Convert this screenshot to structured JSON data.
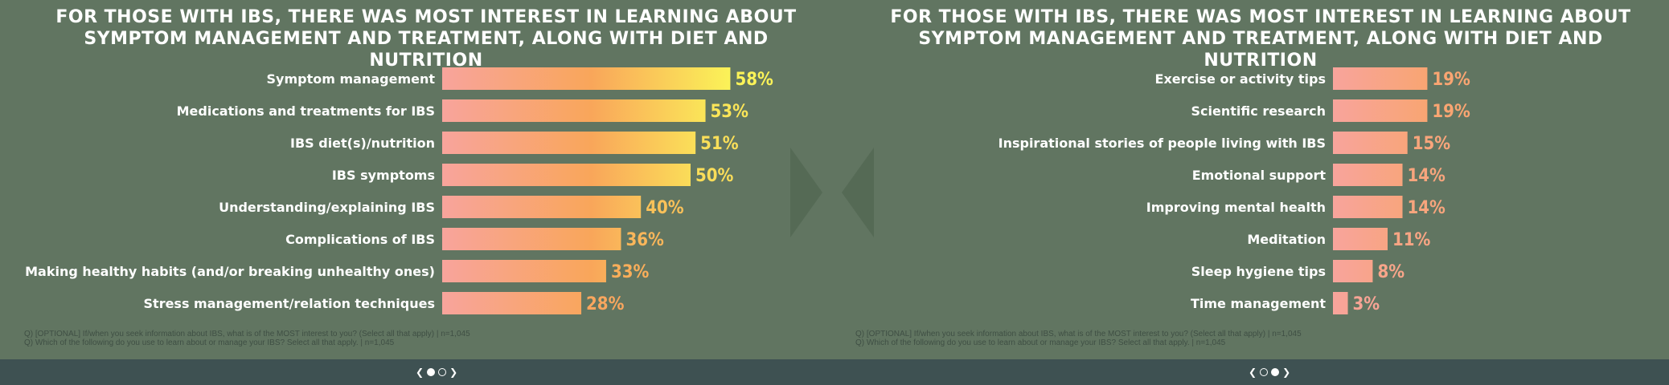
{
  "colors": {
    "background": "#617561",
    "bottom_bar": "#3e5152",
    "gradient_low": "#f8a49c",
    "gradient_mid": "#f9a65a",
    "gradient_high": "#fbf858"
  },
  "chart_data": [
    {
      "type": "bar",
      "orientation": "horizontal",
      "title": "For those with IBS, there was most interest in learning about symptom management and treatment, along with diet and nutrition",
      "categories": [
        "Symptom management",
        "Medications and treatments for IBS",
        "IBS diet(s)/nutrition",
        "IBS symptoms",
        "Understanding/explaining IBS",
        "Complications of IBS",
        "Making healthy habits (and/or breaking unhealthy ones)",
        "Stress management/relation techniques"
      ],
      "values": [
        58,
        53,
        51,
        50,
        40,
        36,
        33,
        28
      ],
      "value_labels": [
        "58%",
        "53%",
        "51%",
        "50%",
        "40%",
        "36%",
        "33%",
        "28%"
      ],
      "xlim": [
        0,
        60
      ],
      "grid": false,
      "footnote": [
        "Q) [OPTIONAL] If/when you seek information about IBS, what is of the MOST interest to you? (Select all that apply) | n=1,045",
        "Q) Which of the following do you use to learn about or manage your IBS? Select all that apply. | n=1,045"
      ]
    },
    {
      "type": "bar",
      "orientation": "horizontal",
      "title": "For those with IBS, there was most interest in learning about symptom management and treatment, along with diet and nutrition",
      "categories": [
        "Exercise or activity tips",
        "Scientific research",
        "Inspirational stories of people living with IBS",
        "Emotional support",
        "Improving mental health",
        "Meditation",
        "Sleep hygiene tips",
        "Time management"
      ],
      "values": [
        19,
        19,
        15,
        14,
        14,
        11,
        8,
        3
      ],
      "value_labels": [
        "19%",
        "19%",
        "15%",
        "14%",
        "14%",
        "11%",
        "8%",
        "3%"
      ],
      "xlim": [
        0,
        60
      ],
      "grid": false,
      "footnote": [
        "Q) [OPTIONAL] If/when you seek information about IBS, what is of the MOST interest to you? (Select all that apply) | n=1,045",
        "Q) Which of the following do you use to learn about or manage your IBS? Select all that apply. | n=1,045"
      ]
    }
  ],
  "pager": {
    "prev_icon": "chevron-left-icon",
    "next_icon": "chevron-right-icon",
    "pages": 2
  }
}
